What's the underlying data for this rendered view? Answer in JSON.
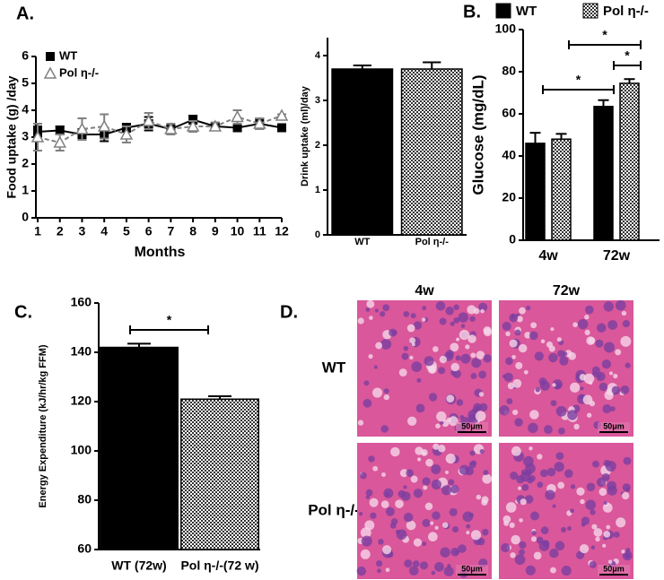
{
  "chart_data": [
    {
      "type": "line",
      "panel_label": "A.",
      "x_label": "Months",
      "y_label": "Food uptake (g) /day",
      "x": [
        1,
        2,
        3,
        4,
        5,
        6,
        7,
        8,
        9,
        10,
        11,
        12
      ],
      "xlim": [
        1,
        12
      ],
      "xticks": [
        1,
        2,
        3,
        4,
        5,
        6,
        7,
        8,
        9,
        10,
        11,
        12
      ],
      "ylim": [
        0,
        6
      ],
      "yticks": [
        0,
        1,
        2,
        3,
        4,
        5,
        6
      ],
      "series": [
        {
          "name": "WT",
          "color": "#000000",
          "marker": "square",
          "line_style": "solid",
          "values": [
            3.2,
            3.25,
            3.1,
            3.1,
            3.35,
            3.5,
            3.3,
            3.65,
            3.4,
            3.35,
            3.5,
            3.35
          ],
          "errors": [
            0.2,
            0.15,
            0.2,
            0.25,
            0.15,
            0.25,
            0.15,
            0.15,
            0.1,
            0.1,
            0.2,
            0.1
          ]
        },
        {
          "name": "Pol η-/-",
          "color": "#808080",
          "marker": "triangle",
          "line_style": "dashed",
          "values": [
            3.0,
            2.8,
            3.3,
            3.4,
            3.1,
            3.6,
            3.3,
            3.4,
            3.4,
            3.75,
            3.5,
            3.8
          ],
          "errors": [
            0.5,
            0.3,
            0.4,
            0.45,
            0.3,
            0.3,
            0.2,
            0.2,
            0.15,
            0.25,
            0.2,
            0.05
          ]
        }
      ]
    },
    {
      "type": "bar",
      "y_label": "Drink uptake (ml)/day",
      "categories": [
        "WT",
        "Pol η-/-"
      ],
      "values": [
        3.7,
        3.7
      ],
      "errors": [
        0.08,
        0.15
      ],
      "fills": [
        "solid",
        "checker"
      ],
      "ylim": [
        0,
        4.4
      ],
      "yticks": [
        0,
        1,
        2,
        3,
        4
      ]
    },
    {
      "type": "grouped_bar",
      "panel_label": "B.",
      "y_label": "Glucose (mg/dL)",
      "categories": [
        "4w",
        "72w"
      ],
      "series": [
        {
          "name": "WT",
          "fill": "solid",
          "values": [
            46,
            63.5
          ],
          "errors": [
            5,
            3
          ]
        },
        {
          "name": "Pol η-/-",
          "fill": "checker",
          "values": [
            48,
            74.5
          ],
          "errors": [
            2.5,
            2
          ]
        }
      ],
      "ylim": [
        0,
        100
      ],
      "yticks": [
        0,
        20,
        40,
        60,
        80,
        100
      ],
      "annotations": [
        "*",
        "*",
        "*"
      ]
    },
    {
      "type": "bar",
      "panel_label": "C.",
      "y_label": "Energy Expenditure (kJ/hr/kg FFM)",
      "categories": [
        "WT (72w)",
        "Pol η-/-(72 w)"
      ],
      "values": [
        142,
        121
      ],
      "errors": [
        1.5,
        1.2
      ],
      "fills": [
        "solid",
        "checker"
      ],
      "ylim": [
        60,
        160
      ],
      "yticks": [
        60,
        80,
        100,
        120,
        140,
        160
      ],
      "annotations": [
        "*"
      ]
    }
  ],
  "panel_d": {
    "panel_label": "D.",
    "columns": [
      "4w",
      "72w"
    ],
    "rows": [
      "WT",
      "Pol η-/-"
    ],
    "scale_bar": "50μm"
  }
}
